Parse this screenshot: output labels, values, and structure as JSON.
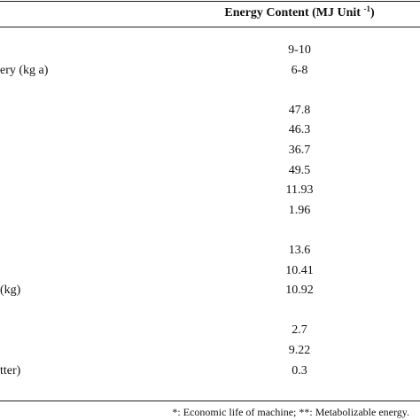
{
  "header": {
    "column": "Energy Content (MJ Unit",
    "superscript": "-1",
    "close": ")"
  },
  "groups": [
    [
      {
        "value": "9-10"
      },
      {
        "label": "ery (kg a)",
        "value": "6-8"
      }
    ],
    [
      {
        "value": "47.8"
      },
      {
        "value": "46.3"
      },
      {
        "value": "36.7"
      },
      {
        "value": "49.5"
      },
      {
        "value": "11.93"
      },
      {
        "value": "1.96"
      }
    ],
    [
      {
        "value": "13.6"
      },
      {
        "value": "10.41"
      },
      {
        "label": "(kg)",
        "value": "10.92"
      }
    ],
    [
      {
        "value": "2.7"
      },
      {
        "value": "9.22"
      },
      {
        "label": "tter)",
        "value": "0.3"
      }
    ]
  ],
  "footnote": "*: Economic life of machine; **: Metabolizable energy."
}
